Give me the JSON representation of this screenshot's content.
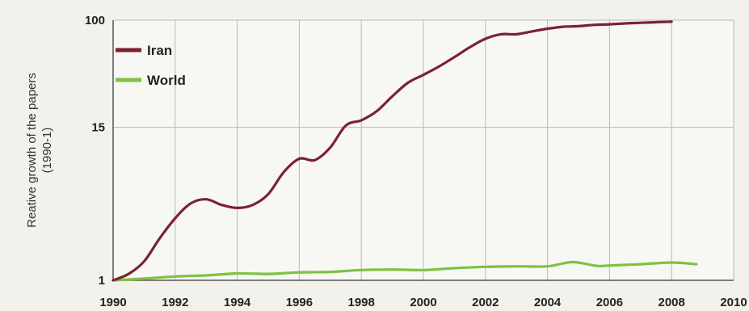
{
  "chart_data": {
    "type": "line",
    "xlabel": "",
    "ylabel_line1": "Reative growth of the papers",
    "ylabel_line2": "(1990-1)",
    "x_ticks": [
      1990,
      1992,
      1994,
      1996,
      1998,
      2000,
      2002,
      2004,
      2006,
      2008,
      2010
    ],
    "y_ticks": [
      1,
      15,
      100
    ],
    "y_scale": "log",
    "ylim": [
      1,
      100
    ],
    "xlim": [
      1990,
      2010
    ],
    "grid": true,
    "legend_position": "top-left",
    "series": [
      {
        "name": "Iran",
        "color": "#7a2230",
        "points": [
          [
            1990,
            1.0
          ],
          [
            1990.5,
            1.12
          ],
          [
            1991,
            1.4
          ],
          [
            1991.5,
            2.1
          ],
          [
            1992,
            3.0
          ],
          [
            1992.5,
            3.9
          ],
          [
            1993,
            4.2
          ],
          [
            1993.5,
            3.8
          ],
          [
            1994,
            3.6
          ],
          [
            1994.5,
            3.8
          ],
          [
            1995,
            4.6
          ],
          [
            1995.5,
            6.8
          ],
          [
            1996,
            8.6
          ],
          [
            1996.5,
            8.4
          ],
          [
            1997,
            10.5
          ],
          [
            1997.5,
            15.5
          ],
          [
            1998,
            17.0
          ],
          [
            1998.5,
            20.0
          ],
          [
            1999,
            26.0
          ],
          [
            1999.5,
            33.0
          ],
          [
            2000,
            38.0
          ],
          [
            2000.5,
            44.0
          ],
          [
            2001,
            52.0
          ],
          [
            2001.5,
            62.0
          ],
          [
            2002,
            72.0
          ],
          [
            2002.5,
            78.0
          ],
          [
            2003,
            78.0
          ],
          [
            2003.5,
            82.0
          ],
          [
            2004,
            86.0
          ],
          [
            2004.5,
            89.0
          ],
          [
            2005,
            90.0
          ],
          [
            2005.5,
            92.0
          ],
          [
            2006,
            93.0
          ],
          [
            2006.5,
            94.5
          ],
          [
            2007,
            95.5
          ],
          [
            2007.5,
            96.5
          ],
          [
            2008,
            97.5
          ]
        ]
      },
      {
        "name": "World",
        "color": "#7ec242",
        "points": [
          [
            1990,
            1.0
          ],
          [
            1991,
            1.03
          ],
          [
            1992,
            1.07
          ],
          [
            1993,
            1.09
          ],
          [
            1994,
            1.13
          ],
          [
            1995,
            1.12
          ],
          [
            1996,
            1.15
          ],
          [
            1997,
            1.16
          ],
          [
            1998,
            1.2
          ],
          [
            1999,
            1.21
          ],
          [
            2000,
            1.2
          ],
          [
            2001,
            1.24
          ],
          [
            2002,
            1.27
          ],
          [
            2003,
            1.28
          ],
          [
            2004,
            1.28
          ],
          [
            2004.8,
            1.38
          ],
          [
            2005.6,
            1.29
          ],
          [
            2006,
            1.3
          ],
          [
            2007,
            1.33
          ],
          [
            2008,
            1.37
          ],
          [
            2008.8,
            1.33
          ]
        ]
      }
    ]
  }
}
